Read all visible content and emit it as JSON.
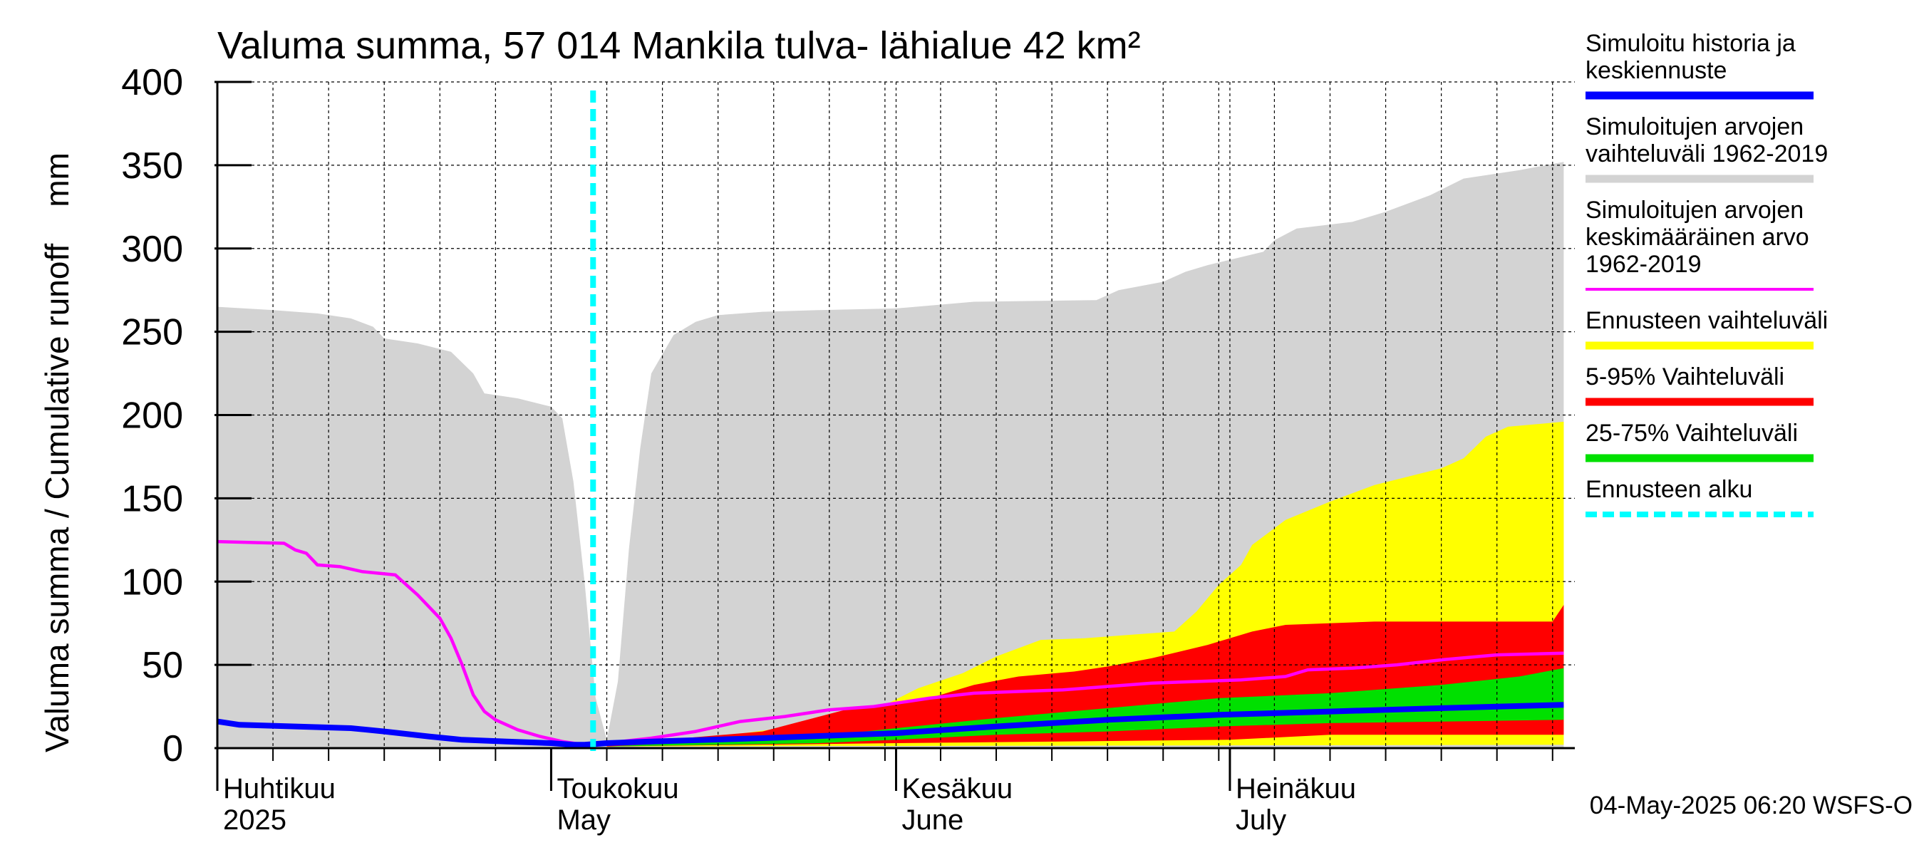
{
  "chart_data": {
    "type": "area",
    "title": "Valuma summa, 57 014 Mankila tulva- lähialue 42 km²",
    "ylabel": "Valuma summa / Cumulative runoff    mm",
    "ylim": [
      0,
      400
    ],
    "yticks": [
      0,
      50,
      100,
      150,
      200,
      250,
      300,
      350,
      400
    ],
    "xlim": [
      "2025-04-01",
      "2025-07-31"
    ],
    "grid": true,
    "legend_placement": "right",
    "month_labels": [
      {
        "date": "2025-04-01",
        "fi": "Huhtikuu",
        "en": "2025"
      },
      {
        "date": "2025-05-01",
        "fi": "Toukokuu",
        "en": "May"
      },
      {
        "date": "2025-06-01",
        "fi": "Kesäkuu",
        "en": "June"
      },
      {
        "date": "2025-07-01",
        "fi": "Heinäkuu",
        "en": "July"
      }
    ],
    "forecast_start": "2025-05-04",
    "footer": "04-May-2025 06:20 WSFS-O",
    "series": [
      {
        "name": "Simuloitujen arvojen vaihteluväli 1962-2019",
        "color": "#d3d3d3",
        "kind": "band",
        "upper": [
          [
            "2025-04-01",
            265
          ],
          [
            "2025-04-06",
            263
          ],
          [
            "2025-04-10",
            261
          ],
          [
            "2025-04-13",
            258
          ],
          [
            "2025-04-15",
            253
          ],
          [
            "2025-04-16",
            246
          ],
          [
            "2025-04-19",
            243
          ],
          [
            "2025-04-22",
            238
          ],
          [
            "2025-04-24",
            225
          ],
          [
            "2025-04-25",
            213
          ],
          [
            "2025-04-28",
            210
          ],
          [
            "2025-05-01",
            205
          ],
          [
            "2025-05-02",
            198
          ],
          [
            "2025-05-03",
            160
          ],
          [
            "2025-05-04",
            100
          ],
          [
            "2025-05-05",
            30
          ],
          [
            "2025-05-06",
            5
          ],
          [
            "2025-05-07",
            40
          ],
          [
            "2025-05-08",
            120
          ],
          [
            "2025-05-09",
            180
          ],
          [
            "2025-05-10",
            225
          ],
          [
            "2025-05-12",
            248
          ],
          [
            "2025-05-14",
            256
          ],
          [
            "2025-05-16",
            260
          ],
          [
            "2025-05-20",
            262
          ],
          [
            "2025-05-25",
            263
          ],
          [
            "2025-06-01",
            264
          ],
          [
            "2025-06-08",
            268
          ],
          [
            "2025-06-19",
            269
          ],
          [
            "2025-06-21",
            275
          ],
          [
            "2025-06-25",
            280
          ],
          [
            "2025-06-27",
            286
          ],
          [
            "2025-06-29",
            290
          ],
          [
            "2025-07-04",
            298
          ],
          [
            "2025-07-05",
            305
          ],
          [
            "2025-07-07",
            312
          ],
          [
            "2025-07-12",
            316
          ],
          [
            "2025-07-15",
            322
          ],
          [
            "2025-07-19",
            332
          ],
          [
            "2025-07-22",
            342
          ],
          [
            "2025-07-27",
            347
          ],
          [
            "2025-07-31",
            352
          ]
        ],
        "lower": [
          [
            "2025-04-01",
            0
          ],
          [
            "2025-07-31",
            0
          ]
        ]
      },
      {
        "name": "Ennusteen vaihteluväli",
        "color": "#ffff00",
        "kind": "band",
        "upper": [
          [
            "2025-05-06",
            2
          ],
          [
            "2025-05-15",
            6
          ],
          [
            "2025-05-25",
            15
          ],
          [
            "2025-05-31",
            26
          ],
          [
            "2025-06-03",
            36
          ],
          [
            "2025-06-07",
            45
          ],
          [
            "2025-06-10",
            55
          ],
          [
            "2025-06-14",
            65
          ],
          [
            "2025-06-18",
            66
          ],
          [
            "2025-06-22",
            68
          ],
          [
            "2025-06-26",
            70
          ],
          [
            "2025-06-28",
            82
          ],
          [
            "2025-06-30",
            98
          ],
          [
            "2025-07-02",
            110
          ],
          [
            "2025-07-03",
            122
          ],
          [
            "2025-07-06",
            137
          ],
          [
            "2025-07-10",
            148
          ],
          [
            "2025-07-14",
            158
          ],
          [
            "2025-07-17",
            163
          ],
          [
            "2025-07-20",
            168
          ],
          [
            "2025-07-22",
            174
          ],
          [
            "2025-07-24",
            187
          ],
          [
            "2025-07-26",
            193
          ],
          [
            "2025-07-31",
            196
          ]
        ],
        "lower": [
          [
            "2025-05-06",
            1
          ],
          [
            "2025-07-31",
            2
          ]
        ]
      },
      {
        "name": "5-95% Vaihteluväli",
        "color": "#ff0000",
        "kind": "band",
        "upper": [
          [
            "2025-05-06",
            2
          ],
          [
            "2025-05-20",
            10
          ],
          [
            "2025-05-28",
            24
          ],
          [
            "2025-06-04",
            30
          ],
          [
            "2025-06-08",
            38
          ],
          [
            "2025-06-12",
            43
          ],
          [
            "2025-06-17",
            46
          ],
          [
            "2025-06-20",
            49
          ],
          [
            "2025-06-24",
            54
          ],
          [
            "2025-06-29",
            62
          ],
          [
            "2025-07-03",
            70
          ],
          [
            "2025-07-06",
            74
          ],
          [
            "2025-07-14",
            76
          ],
          [
            "2025-07-30",
            76
          ],
          [
            "2025-07-31",
            86
          ]
        ],
        "lower": [
          [
            "2025-05-06",
            1
          ],
          [
            "2025-06-01",
            3
          ],
          [
            "2025-07-01",
            5
          ],
          [
            "2025-07-10",
            8
          ],
          [
            "2025-07-31",
            8
          ]
        ]
      },
      {
        "name": "25-75% Vaihteluväli",
        "color": "#00e000",
        "kind": "band",
        "upper": [
          [
            "2025-05-06",
            1
          ],
          [
            "2025-05-25",
            7
          ],
          [
            "2025-06-01",
            12
          ],
          [
            "2025-06-10",
            18
          ],
          [
            "2025-06-20",
            24
          ],
          [
            "2025-06-30",
            30
          ],
          [
            "2025-07-10",
            33
          ],
          [
            "2025-07-20",
            38
          ],
          [
            "2025-07-27",
            43
          ],
          [
            "2025-07-31",
            48
          ]
        ],
        "lower": [
          [
            "2025-05-06",
            1
          ],
          [
            "2025-05-25",
            3
          ],
          [
            "2025-06-01",
            5
          ],
          [
            "2025-06-10",
            8
          ],
          [
            "2025-06-20",
            10
          ],
          [
            "2025-06-30",
            13
          ],
          [
            "2025-07-10",
            15
          ],
          [
            "2025-07-31",
            17
          ]
        ]
      },
      {
        "name": "Simuloitujen arvojen keskimääräinen arvo 1962-2019",
        "color": "#ff00ff",
        "kind": "line",
        "points": [
          [
            "2025-04-01",
            124
          ],
          [
            "2025-04-07",
            123
          ],
          [
            "2025-04-08",
            119
          ],
          [
            "2025-04-09",
            117
          ],
          [
            "2025-04-10",
            110
          ],
          [
            "2025-04-12",
            109
          ],
          [
            "2025-04-14",
            106
          ],
          [
            "2025-04-17",
            104
          ],
          [
            "2025-04-19",
            92
          ],
          [
            "2025-04-21",
            78
          ],
          [
            "2025-04-22",
            66
          ],
          [
            "2025-04-23",
            50
          ],
          [
            "2025-04-24",
            32
          ],
          [
            "2025-04-25",
            22
          ],
          [
            "2025-04-26",
            17
          ],
          [
            "2025-04-28",
            11
          ],
          [
            "2025-04-30",
            7
          ],
          [
            "2025-05-02",
            4
          ],
          [
            "2025-05-04",
            2
          ],
          [
            "2025-05-06",
            3
          ],
          [
            "2025-05-10",
            6
          ],
          [
            "2025-05-14",
            10
          ],
          [
            "2025-05-18",
            16
          ],
          [
            "2025-05-22",
            19
          ],
          [
            "2025-05-26",
            23
          ],
          [
            "2025-05-30",
            25
          ],
          [
            "2025-06-04",
            30
          ],
          [
            "2025-06-08",
            33
          ],
          [
            "2025-06-12",
            34
          ],
          [
            "2025-06-16",
            35
          ],
          [
            "2025-06-20",
            37
          ],
          [
            "2025-06-24",
            39
          ],
          [
            "2025-06-28",
            40
          ],
          [
            "2025-07-02",
            41
          ],
          [
            "2025-07-06",
            43
          ],
          [
            "2025-07-08",
            47
          ],
          [
            "2025-07-12",
            48
          ],
          [
            "2025-07-16",
            50
          ],
          [
            "2025-07-20",
            53
          ],
          [
            "2025-07-25",
            56
          ],
          [
            "2025-07-31",
            57
          ]
        ]
      },
      {
        "name": "Simuloitu historia ja keskiennuste",
        "color": "#0000ff",
        "kind": "line",
        "points": [
          [
            "2025-04-01",
            16
          ],
          [
            "2025-04-03",
            14
          ],
          [
            "2025-04-08",
            13
          ],
          [
            "2025-04-13",
            12
          ],
          [
            "2025-04-16",
            10
          ],
          [
            "2025-04-20",
            7
          ],
          [
            "2025-04-23",
            5
          ],
          [
            "2025-04-27",
            4
          ],
          [
            "2025-05-01",
            3
          ],
          [
            "2025-05-03",
            2
          ],
          [
            "2025-05-04",
            2
          ],
          [
            "2025-05-06",
            3
          ],
          [
            "2025-05-10",
            4
          ],
          [
            "2025-05-20",
            6
          ],
          [
            "2025-06-01",
            9
          ],
          [
            "2025-06-10",
            13
          ],
          [
            "2025-06-20",
            17
          ],
          [
            "2025-06-30",
            20
          ],
          [
            "2025-07-10",
            22
          ],
          [
            "2025-07-20",
            24
          ],
          [
            "2025-07-31",
            26
          ]
        ]
      },
      {
        "name": "Ennusteen alku",
        "color": "#00ffff",
        "kind": "marker"
      }
    ],
    "legend": [
      {
        "label_lines": [
          "Simuloitu historia ja",
          "keskiennuste"
        ],
        "color": "#0000ff",
        "style": "solid"
      },
      {
        "label_lines": [
          "Simuloitujen arvojen",
          "vaihteluväli 1962-2019"
        ],
        "color": "#d3d3d3",
        "style": "solid"
      },
      {
        "label_lines": [
          "Simuloitujen arvojen",
          "keskimääräinen arvo",
          "   1962-2019"
        ],
        "color": "#ff00ff",
        "style": "thin"
      },
      {
        "label_lines": [
          "Ennusteen vaihteluväli"
        ],
        "color": "#ffff00",
        "style": "solid"
      },
      {
        "label_lines": [
          "5-95% Vaihteluväli"
        ],
        "color": "#ff0000",
        "style": "solid"
      },
      {
        "label_lines": [
          "25-75% Vaihteluväli"
        ],
        "color": "#00e000",
        "style": "solid"
      },
      {
        "label_lines": [
          "Ennusteen alku"
        ],
        "color": "#00ffff",
        "style": "dashed"
      }
    ]
  }
}
